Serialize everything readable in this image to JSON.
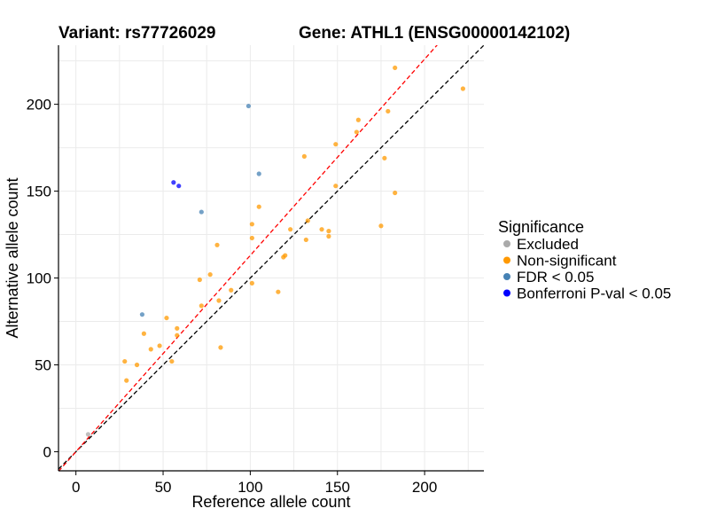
{
  "header": {
    "variant_label": "Variant: rs77726029",
    "gene_label": "Gene: ATHL1 (ENSG00000142102)"
  },
  "chart_data": {
    "type": "scatter",
    "xlabel": "Reference allele count",
    "ylabel": "Alternative allele count",
    "xlim": [
      -10,
      234
    ],
    "ylim": [
      -11,
      234
    ],
    "x_ticks": [
      0,
      50,
      100,
      150,
      200
    ],
    "y_ticks": [
      0,
      50,
      100,
      150,
      200
    ],
    "grid": true,
    "legend": {
      "title": "Significance",
      "placement": "right",
      "entries": [
        {
          "label": "Excluded",
          "color": "#aaaaaa"
        },
        {
          "label": "Non-significant",
          "color": "#ff9900"
        },
        {
          "label": "FDR < 0.05",
          "color": "#4682b4"
        },
        {
          "label": "Bonferroni P-val < 0.05",
          "color": "#0000ff"
        }
      ]
    },
    "reference_lines": [
      {
        "slope": 1,
        "intercept": 0,
        "color": "#000000",
        "style": "dashed"
      },
      {
        "slope": 1.13,
        "intercept": 0,
        "color": "#ff0000",
        "style": "dashed"
      }
    ],
    "series": [
      {
        "name": "Excluded",
        "color": "#aaaaaa",
        "points": [
          [
            7,
            10
          ]
        ]
      },
      {
        "name": "Non-significant",
        "color": "#ff9900",
        "points": [
          [
            183,
            221
          ],
          [
            222,
            209
          ],
          [
            179,
            196
          ],
          [
            162,
            191
          ],
          [
            161,
            184
          ],
          [
            149,
            177
          ],
          [
            131,
            170
          ],
          [
            177,
            169
          ],
          [
            149,
            153
          ],
          [
            183,
            149
          ],
          [
            105,
            141
          ],
          [
            133,
            133
          ],
          [
            101,
            131
          ],
          [
            175,
            130
          ],
          [
            123,
            128
          ],
          [
            141,
            128
          ],
          [
            145,
            127
          ],
          [
            145,
            124
          ],
          [
            101,
            123
          ],
          [
            132,
            122
          ],
          [
            81,
            119
          ],
          [
            120,
            113
          ],
          [
            119,
            112
          ],
          [
            77,
            102
          ],
          [
            71,
            99
          ],
          [
            101,
            97
          ],
          [
            89,
            93
          ],
          [
            116,
            92
          ],
          [
            82,
            87
          ],
          [
            72,
            84
          ],
          [
            52,
            77
          ],
          [
            58,
            71
          ],
          [
            39,
            68
          ],
          [
            58,
            67
          ],
          [
            48,
            61
          ],
          [
            83,
            60
          ],
          [
            43,
            59
          ],
          [
            28,
            52
          ],
          [
            55,
            52
          ],
          [
            35,
            50
          ],
          [
            29,
            41
          ]
        ]
      },
      {
        "name": "FDR < 0.05",
        "color": "#4682b4",
        "points": [
          [
            99,
            199
          ],
          [
            105,
            160
          ],
          [
            72,
            138
          ],
          [
            38,
            79
          ]
        ]
      },
      {
        "name": "Bonferroni P-val < 0.05",
        "color": "#0000ff",
        "points": [
          [
            56,
            155
          ],
          [
            59,
            153
          ]
        ]
      }
    ]
  }
}
